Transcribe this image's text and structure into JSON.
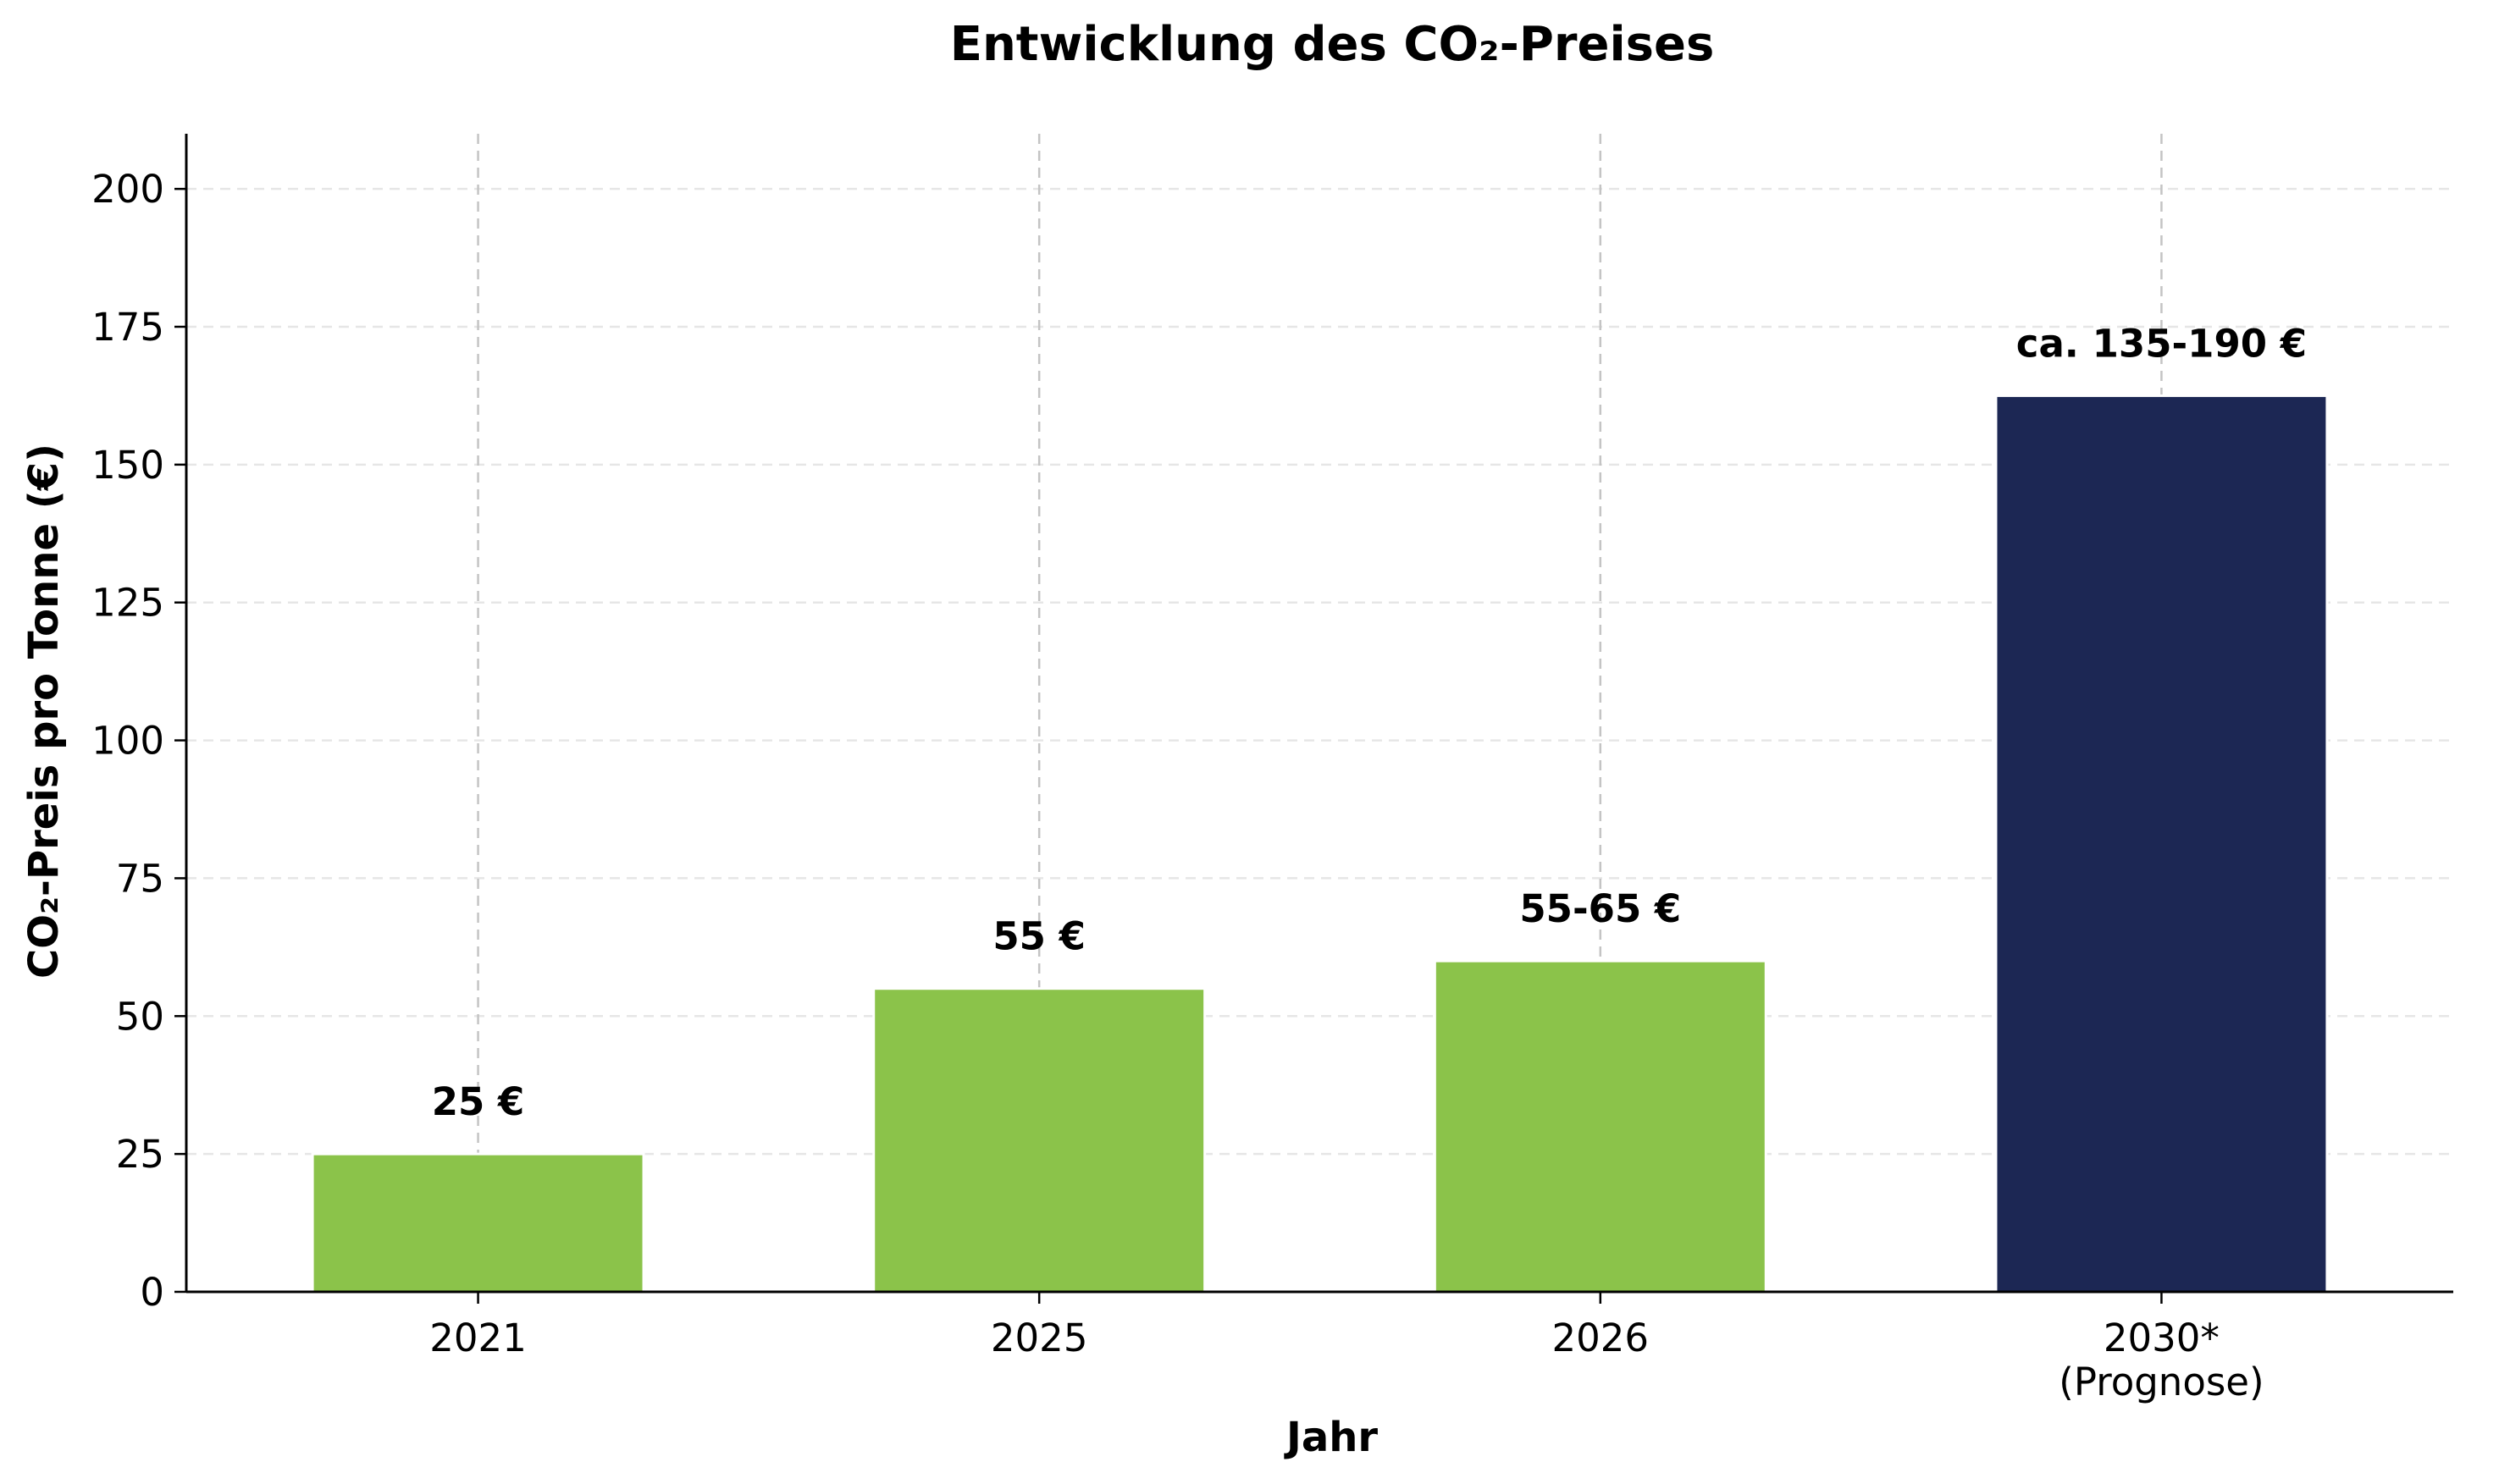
{
  "chart_data": {
    "type": "bar",
    "title": "Entwicklung des CO₂-Preises",
    "xlabel": "Jahr",
    "ylabel": "CO₂-Preis pro Tonne (€)",
    "ylim": [
      0,
      210
    ],
    "yticks": [
      0,
      25,
      50,
      75,
      100,
      125,
      150,
      175,
      200
    ],
    "grid": {
      "x": true,
      "y": true,
      "style": "dashed"
    },
    "categories": [
      {
        "label": "2021",
        "sublabel": ""
      },
      {
        "label": "2025",
        "sublabel": ""
      },
      {
        "label": "2026",
        "sublabel": ""
      },
      {
        "label": "2030*",
        "sublabel": "(Prognose)"
      }
    ],
    "values": [
      25,
      55,
      60,
      162.5
    ],
    "data_labels": [
      "25 €",
      "55 €",
      "55-65 €",
      "ca. 135-190 €"
    ],
    "colors": [
      "#8BC34A",
      "#8BC34A",
      "#8BC34A",
      "#1C2754"
    ]
  }
}
